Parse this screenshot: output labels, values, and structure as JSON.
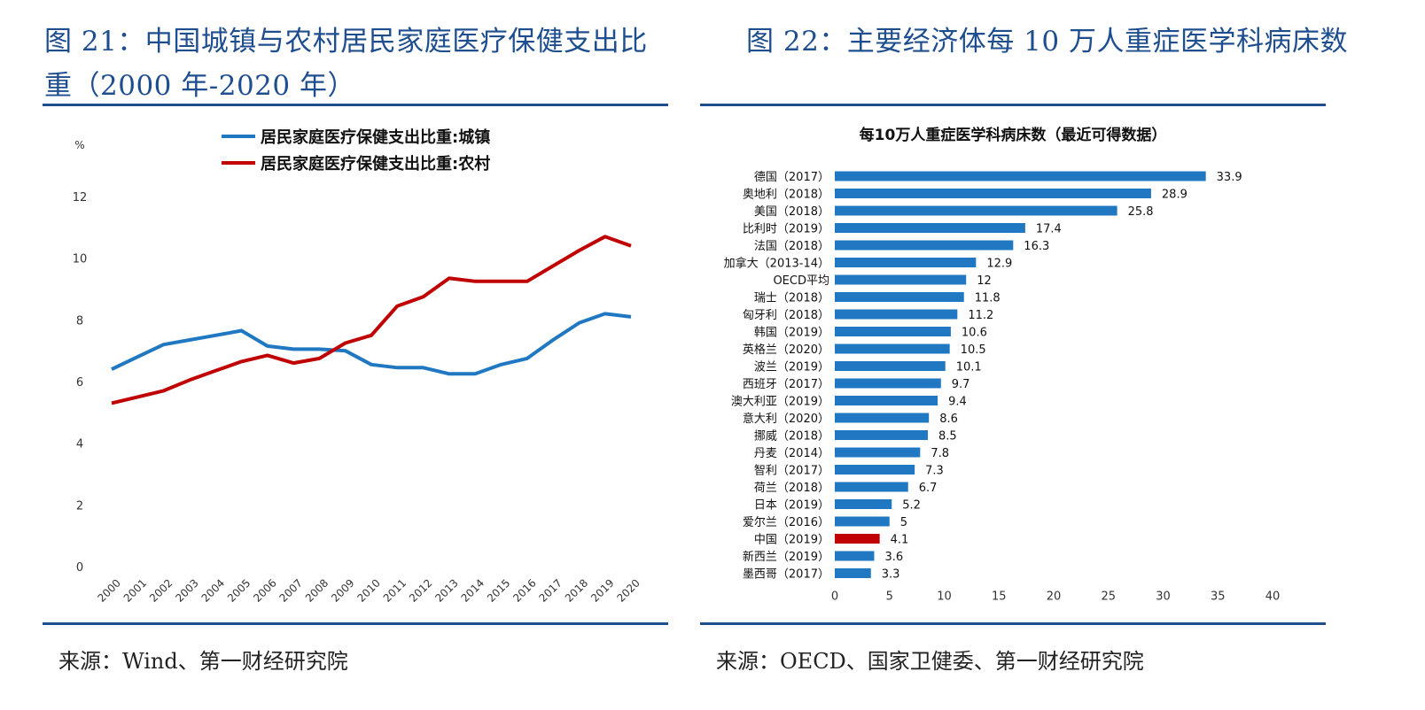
{
  "left": {
    "title": "图 21：中国城镇与农村居民家庭医疗保健支出比重（2000 年-2020 年）",
    "source": "来源：Wind、第一财经研究院",
    "colors": {
      "urban": "#1f78c1",
      "rural": "#c00000"
    },
    "chart_data": {
      "type": "line",
      "ylabel": "%",
      "ylim": [
        0,
        12
      ],
      "yticks": [
        "0",
        "2",
        "4",
        "6",
        "8",
        "10",
        "12"
      ],
      "categories": [
        "2000",
        "2001",
        "2002",
        "2003",
        "2004",
        "2005",
        "2006",
        "2007",
        "2008",
        "2009",
        "2010",
        "2011",
        "2012",
        "2013",
        "2014",
        "2015",
        "2016",
        "2017",
        "2018",
        "2019",
        "2020"
      ],
      "legend_position": "top",
      "series": [
        {
          "name": "居民家庭医疗保健支出比重:城镇",
          "color": "#1f78c1",
          "values": [
            6.4,
            6.8,
            7.2,
            7.35,
            7.5,
            7.65,
            7.15,
            7.05,
            7.05,
            7.0,
            6.55,
            6.45,
            6.45,
            6.25,
            6.25,
            6.55,
            6.75,
            7.35,
            7.9,
            8.2,
            8.1
          ]
        },
        {
          "name": "居民家庭医疗保健支出比重:农村",
          "color": "#c00000",
          "values": [
            5.3,
            5.5,
            5.7,
            6.05,
            6.35,
            6.65,
            6.85,
            6.6,
            6.75,
            7.25,
            7.5,
            8.45,
            8.75,
            9.35,
            9.25,
            9.25,
            9.25,
            9.75,
            10.25,
            10.7,
            10.4
          ]
        }
      ]
    }
  },
  "right": {
    "title": "图 22：主要经济体每 10 万人重症医学科病床数",
    "source": "来源：OECD、国家卫健委、第一财经研究院",
    "colors": {
      "bar": "#1f78c1",
      "highlight": "#c00000"
    },
    "chart_data": {
      "type": "bar",
      "orientation": "horizontal",
      "title": "每10万人重症医学科病床数（最近可得数据）",
      "xlim": [
        0,
        40
      ],
      "xticks": [
        "0",
        "5",
        "10",
        "15",
        "20",
        "25",
        "30",
        "35",
        "40"
      ],
      "categories": [
        "德国（2017）",
        "奥地利（2018）",
        "美国（2018）",
        "比利时（2019）",
        "法国（2018）",
        "加拿大（2013-14）",
        "OECD平均",
        "瑞士（2018）",
        "匈牙利（2018）",
        "韩国（2019）",
        "英格兰（2020）",
        "波兰（2019）",
        "西班牙（2017）",
        "澳大利亚（2019）",
        "意大利（2020）",
        "挪威（2018）",
        "丹麦（2014）",
        "智利（2017）",
        "荷兰（2018）",
        "日本（2019）",
        "爱尔兰（2016）",
        "中国（2019）",
        "新西兰（2019）",
        "墨西哥（2017）"
      ],
      "values": [
        33.9,
        28.9,
        25.8,
        17.4,
        16.3,
        12.9,
        12,
        11.8,
        11.2,
        10.6,
        10.5,
        10.1,
        9.7,
        9.4,
        8.6,
        8.5,
        7.8,
        7.3,
        6.7,
        5.2,
        5,
        4.1,
        3.6,
        3.3
      ],
      "value_labels": [
        "33.9",
        "28.9",
        "25.8",
        "17.4",
        "16.3",
        "12.9",
        "12",
        "11.8",
        "11.2",
        "10.6",
        "10.5",
        "10.1",
        "9.7",
        "9.4",
        "8.6",
        "8.5",
        "7.8",
        "7.3",
        "6.7",
        "5.2",
        "5",
        "4.1",
        "3.6",
        "3.3"
      ],
      "highlight": "中国（2019）"
    }
  }
}
